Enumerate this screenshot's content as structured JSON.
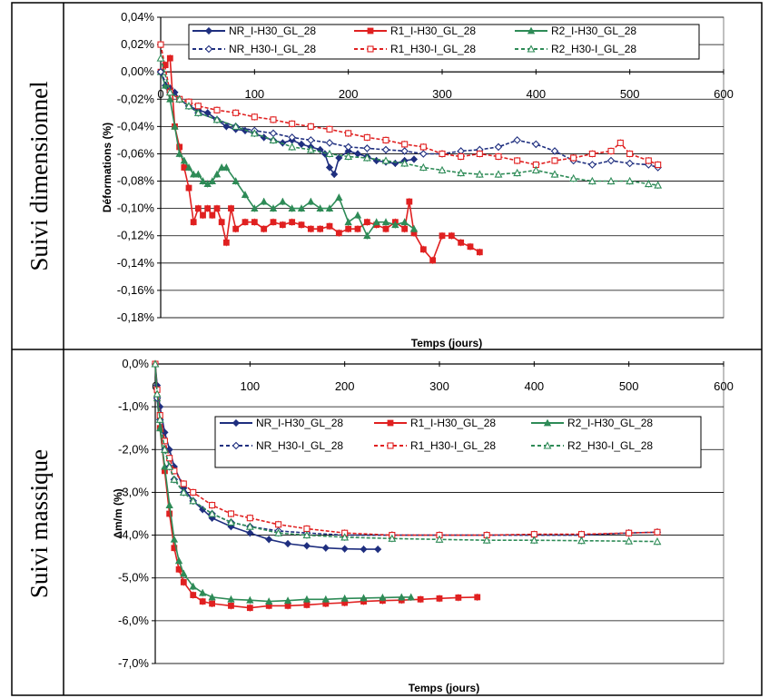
{
  "table": {
    "row_labels": [
      "Suivi dimensionnel",
      "Suivi massique"
    ]
  },
  "chart_data": [
    {
      "type": "line",
      "ylabel": "Déformations (%)",
      "xlabel": "Temps (jours)",
      "xlim": [
        0,
        600
      ],
      "ylim": [
        -0.18,
        0.04
      ],
      "x_ticks": [
        0,
        100,
        200,
        300,
        400,
        500,
        600
      ],
      "y_ticks": [
        0.04,
        0.02,
        0.0,
        -0.02,
        -0.04,
        -0.06,
        -0.08,
        -0.1,
        -0.12,
        -0.14,
        -0.16,
        -0.18
      ],
      "x_tick_labels": [
        "0",
        "100",
        "200",
        "300",
        "400",
        "500",
        "600"
      ],
      "y_tick_labels": [
        "0,04%",
        "0,02%",
        "0,00%",
        "-0,02%",
        "-0,04%",
        "-0,06%",
        "-0,08%",
        "-0,10%",
        "-0,12%",
        "-0,14%",
        "-0,16%",
        "-0,18%"
      ],
      "grid": "horizontal",
      "legend_position": "top",
      "series": [
        {
          "name": "NR_I-H30_GL_28",
          "color": "#1f2f7f",
          "marker": "diamond",
          "dashed": false,
          "x": [
            0,
            5,
            10,
            15,
            20,
            30,
            40,
            50,
            60,
            70,
            80,
            90,
            100,
            110,
            120,
            130,
            140,
            150,
            160,
            170,
            175,
            180,
            185,
            190,
            200,
            210,
            220,
            230,
            240,
            250,
            260,
            270
          ],
          "y": [
            0.0,
            -0.01,
            -0.012,
            -0.015,
            -0.02,
            -0.025,
            -0.028,
            -0.03,
            -0.035,
            -0.04,
            -0.042,
            -0.043,
            -0.045,
            -0.048,
            -0.05,
            -0.052,
            -0.05,
            -0.053,
            -0.055,
            -0.057,
            -0.06,
            -0.07,
            -0.075,
            -0.063,
            -0.058,
            -0.06,
            -0.062,
            -0.065,
            -0.066,
            -0.067,
            -0.065,
            -0.064
          ]
        },
        {
          "name": "R1_I-H30_GL_28",
          "color": "#e02020",
          "marker": "square",
          "dashed": false,
          "x": [
            0,
            5,
            10,
            15,
            20,
            25,
            30,
            35,
            40,
            45,
            50,
            55,
            60,
            65,
            70,
            75,
            80,
            90,
            100,
            110,
            120,
            130,
            140,
            150,
            160,
            170,
            180,
            190,
            200,
            210,
            220,
            230,
            240,
            250,
            260,
            265,
            270,
            280,
            290,
            300,
            310,
            320,
            330,
            340
          ],
          "y": [
            0.0,
            0.005,
            0.01,
            -0.04,
            -0.055,
            -0.07,
            -0.085,
            -0.11,
            -0.1,
            -0.105,
            -0.1,
            -0.105,
            -0.1,
            -0.11,
            -0.125,
            -0.1,
            -0.115,
            -0.11,
            -0.11,
            -0.115,
            -0.11,
            -0.112,
            -0.11,
            -0.112,
            -0.115,
            -0.115,
            -0.113,
            -0.118,
            -0.115,
            -0.115,
            -0.11,
            -0.112,
            -0.115,
            -0.11,
            -0.115,
            -0.095,
            -0.118,
            -0.13,
            -0.138,
            -0.12,
            -0.12,
            -0.125,
            -0.128,
            -0.132
          ]
        },
        {
          "name": "R2_I-H30_GL_28",
          "color": "#2e8b57",
          "marker": "triangle",
          "dashed": false,
          "x": [
            0,
            5,
            10,
            15,
            20,
            25,
            30,
            35,
            40,
            45,
            50,
            55,
            60,
            65,
            70,
            80,
            90,
            100,
            110,
            120,
            130,
            140,
            150,
            160,
            170,
            180,
            190,
            200,
            210,
            220,
            230,
            240,
            250,
            260,
            270
          ],
          "y": [
            0.0,
            -0.01,
            -0.02,
            -0.04,
            -0.06,
            -0.065,
            -0.07,
            -0.075,
            -0.075,
            -0.08,
            -0.082,
            -0.08,
            -0.075,
            -0.07,
            -0.07,
            -0.08,
            -0.09,
            -0.1,
            -0.095,
            -0.1,
            -0.095,
            -0.1,
            -0.1,
            -0.095,
            -0.1,
            -0.1,
            -0.092,
            -0.11,
            -0.105,
            -0.12,
            -0.11,
            -0.11,
            -0.112,
            -0.11,
            -0.115
          ]
        },
        {
          "name": "NR_H30-I_GL_28",
          "color": "#1f2f7f",
          "marker": "diamond-open",
          "dashed": true,
          "x": [
            0,
            10,
            20,
            30,
            40,
            60,
            80,
            100,
            120,
            140,
            160,
            180,
            200,
            220,
            240,
            260,
            280,
            300,
            320,
            340,
            360,
            380,
            400,
            420,
            440,
            460,
            480,
            500,
            520,
            530
          ],
          "y": [
            0.0,
            -0.015,
            -0.02,
            -0.025,
            -0.03,
            -0.035,
            -0.04,
            -0.043,
            -0.045,
            -0.048,
            -0.05,
            -0.052,
            -0.055,
            -0.056,
            -0.057,
            -0.058,
            -0.06,
            -0.06,
            -0.058,
            -0.057,
            -0.055,
            -0.05,
            -0.053,
            -0.058,
            -0.065,
            -0.068,
            -0.065,
            -0.067,
            -0.068,
            -0.07
          ]
        },
        {
          "name": "R1_H30-I_GL_28",
          "color": "#e02020",
          "marker": "square-open",
          "dashed": true,
          "x": [
            0,
            10,
            20,
            30,
            40,
            60,
            80,
            100,
            120,
            140,
            160,
            180,
            200,
            220,
            240,
            260,
            280,
            300,
            320,
            340,
            360,
            380,
            400,
            420,
            440,
            460,
            480,
            490,
            500,
            520,
            530
          ],
          "y": [
            0.02,
            -0.015,
            -0.02,
            -0.022,
            -0.025,
            -0.028,
            -0.03,
            -0.033,
            -0.035,
            -0.038,
            -0.04,
            -0.042,
            -0.045,
            -0.048,
            -0.05,
            -0.053,
            -0.055,
            -0.06,
            -0.062,
            -0.06,
            -0.062,
            -0.065,
            -0.068,
            -0.065,
            -0.063,
            -0.06,
            -0.058,
            -0.052,
            -0.06,
            -0.065,
            -0.068
          ]
        },
        {
          "name": "R2_H30-I_GL_28",
          "color": "#2e8b57",
          "marker": "triangle-open",
          "dashed": true,
          "x": [
            0,
            10,
            20,
            30,
            40,
            60,
            80,
            100,
            120,
            140,
            160,
            180,
            200,
            220,
            240,
            260,
            280,
            300,
            320,
            340,
            360,
            380,
            400,
            420,
            440,
            460,
            480,
            500,
            520,
            530
          ],
          "y": [
            0.01,
            -0.015,
            -0.02,
            -0.025,
            -0.03,
            -0.035,
            -0.04,
            -0.045,
            -0.05,
            -0.055,
            -0.057,
            -0.06,
            -0.062,
            -0.063,
            -0.065,
            -0.067,
            -0.07,
            -0.072,
            -0.074,
            -0.075,
            -0.075,
            -0.074,
            -0.072,
            -0.075,
            -0.078,
            -0.08,
            -0.08,
            -0.08,
            -0.082,
            -0.083
          ]
        }
      ]
    },
    {
      "type": "line",
      "ylabel": "Δm/m (%)",
      "xlabel": "Temps (jours)",
      "xlim": [
        0,
        600
      ],
      "ylim": [
        -7.0,
        0.0
      ],
      "x_ticks": [
        0,
        100,
        200,
        300,
        400,
        500,
        600
      ],
      "y_ticks": [
        0.0,
        -1.0,
        -2.0,
        -3.0,
        -4.0,
        -5.0,
        -6.0,
        -7.0
      ],
      "x_tick_labels": [
        "0",
        "100",
        "200",
        "300",
        "400",
        "500",
        "600"
      ],
      "y_tick_labels": [
        "0,0%",
        "-1,0%",
        "-2,0%",
        "-3,0%",
        "-4,0%",
        "-5,0%",
        "-6,0%",
        "-7,0%"
      ],
      "grid": "horizontal",
      "legend_position": "top-right",
      "series": [
        {
          "name": "NR_I-H30_GL_28",
          "color": "#1f2f7f",
          "marker": "diamond",
          "dashed": false,
          "x": [
            0,
            2,
            5,
            10,
            15,
            20,
            30,
            40,
            50,
            60,
            80,
            100,
            120,
            140,
            160,
            180,
            200,
            220,
            235
          ],
          "y": [
            0.0,
            -0.5,
            -1.0,
            -1.6,
            -2.0,
            -2.4,
            -2.9,
            -3.2,
            -3.4,
            -3.6,
            -3.8,
            -3.95,
            -4.1,
            -4.2,
            -4.25,
            -4.3,
            -4.32,
            -4.33,
            -4.33
          ]
        },
        {
          "name": "R1_I-H30_GL_28",
          "color": "#e02020",
          "marker": "square",
          "dashed": false,
          "x": [
            0,
            2,
            5,
            10,
            15,
            20,
            25,
            30,
            40,
            50,
            60,
            80,
            100,
            120,
            140,
            160,
            180,
            200,
            220,
            240,
            260,
            280,
            300,
            320,
            340
          ],
          "y": [
            0.0,
            -0.8,
            -1.5,
            -2.5,
            -3.5,
            -4.3,
            -4.8,
            -5.1,
            -5.4,
            -5.55,
            -5.6,
            -5.65,
            -5.7,
            -5.65,
            -5.65,
            -5.63,
            -5.6,
            -5.58,
            -5.55,
            -5.53,
            -5.52,
            -5.5,
            -5.48,
            -5.46,
            -5.45
          ]
        },
        {
          "name": "R2_I-H30_GL_28",
          "color": "#2e8b57",
          "marker": "triangle",
          "dashed": false,
          "x": [
            0,
            2,
            5,
            10,
            15,
            20,
            25,
            30,
            40,
            50,
            60,
            80,
            100,
            120,
            140,
            160,
            180,
            200,
            220,
            240,
            260,
            270
          ],
          "y": [
            0.0,
            -0.8,
            -1.5,
            -2.4,
            -3.3,
            -4.1,
            -4.6,
            -4.9,
            -5.2,
            -5.35,
            -5.45,
            -5.5,
            -5.52,
            -5.55,
            -5.53,
            -5.5,
            -5.5,
            -5.48,
            -5.47,
            -5.46,
            -5.45,
            -5.45
          ]
        },
        {
          "name": "NR_H30-I_GL_28",
          "color": "#1f2f7f",
          "marker": "diamond-open",
          "dashed": true,
          "x": [
            0,
            2,
            5,
            10,
            15,
            20,
            30,
            40,
            60,
            80,
            100,
            130,
            160,
            200,
            250,
            300,
            350,
            400,
            450,
            500,
            530
          ],
          "y": [
            0.0,
            -0.8,
            -1.3,
            -2.0,
            -2.4,
            -2.7,
            -3.0,
            -3.2,
            -3.5,
            -3.7,
            -3.8,
            -3.9,
            -3.95,
            -4.0,
            -4.0,
            -4.0,
            -4.0,
            -4.0,
            -4.0,
            -3.95,
            -3.93
          ]
        },
        {
          "name": "R1_H30-I_GL_28",
          "color": "#e02020",
          "marker": "square-open",
          "dashed": true,
          "x": [
            0,
            2,
            5,
            10,
            15,
            20,
            30,
            40,
            60,
            80,
            100,
            130,
            160,
            200,
            250,
            300,
            350,
            400,
            450,
            500,
            530
          ],
          "y": [
            0.0,
            -0.6,
            -1.2,
            -1.8,
            -2.2,
            -2.5,
            -2.8,
            -3.0,
            -3.3,
            -3.5,
            -3.6,
            -3.75,
            -3.85,
            -3.95,
            -4.0,
            -4.0,
            -4.0,
            -3.98,
            -3.98,
            -3.95,
            -3.93
          ]
        },
        {
          "name": "R2_H30-I_GL_28",
          "color": "#2e8b57",
          "marker": "triangle-open",
          "dashed": true,
          "x": [
            0,
            2,
            5,
            10,
            15,
            20,
            30,
            40,
            60,
            80,
            100,
            130,
            160,
            200,
            250,
            300,
            350,
            400,
            450,
            500,
            530
          ],
          "y": [
            0.0,
            -0.7,
            -1.3,
            -2.0,
            -2.4,
            -2.7,
            -3.0,
            -3.2,
            -3.5,
            -3.7,
            -3.8,
            -3.95,
            -4.0,
            -4.05,
            -4.08,
            -4.1,
            -4.12,
            -4.12,
            -4.13,
            -4.14,
            -4.15
          ]
        }
      ]
    }
  ]
}
